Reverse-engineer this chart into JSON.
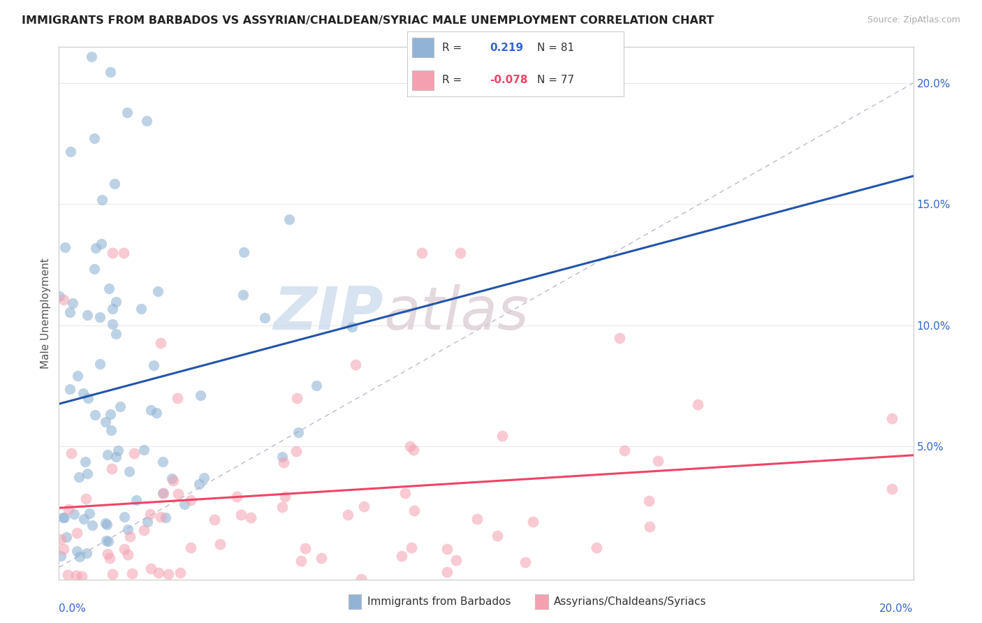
{
  "title": "IMMIGRANTS FROM BARBADOS VS ASSYRIAN/CHALDEAN/SYRIAC MALE UNEMPLOYMENT CORRELATION CHART",
  "source": "Source: ZipAtlas.com",
  "ylabel": "Male Unemployment",
  "legend_blue_r": "0.219",
  "legend_blue_n": "81",
  "legend_pink_r": "-0.078",
  "legend_pink_n": "77",
  "blue_color": "#92B4D4",
  "pink_color": "#F4A0B0",
  "trendline_blue_color": "#2255AA",
  "trendline_pink_color": "#EE4466",
  "diagonal_color": "#BBBBCC",
  "background": "#FFFFFF",
  "right_tick_color": "#3366CC",
  "xlim": [
    0.0,
    0.2
  ],
  "ylim": [
    -0.005,
    0.215
  ],
  "ylabel_right_ticks": [
    "20.0%",
    "15.0%",
    "10.0%",
    "5.0%"
  ],
  "ylabel_right_vals": [
    0.2,
    0.15,
    0.1,
    0.05
  ],
  "watermark_zip": "ZIP",
  "watermark_atlas": "atlas",
  "grid_color": "#E8E8E8"
}
